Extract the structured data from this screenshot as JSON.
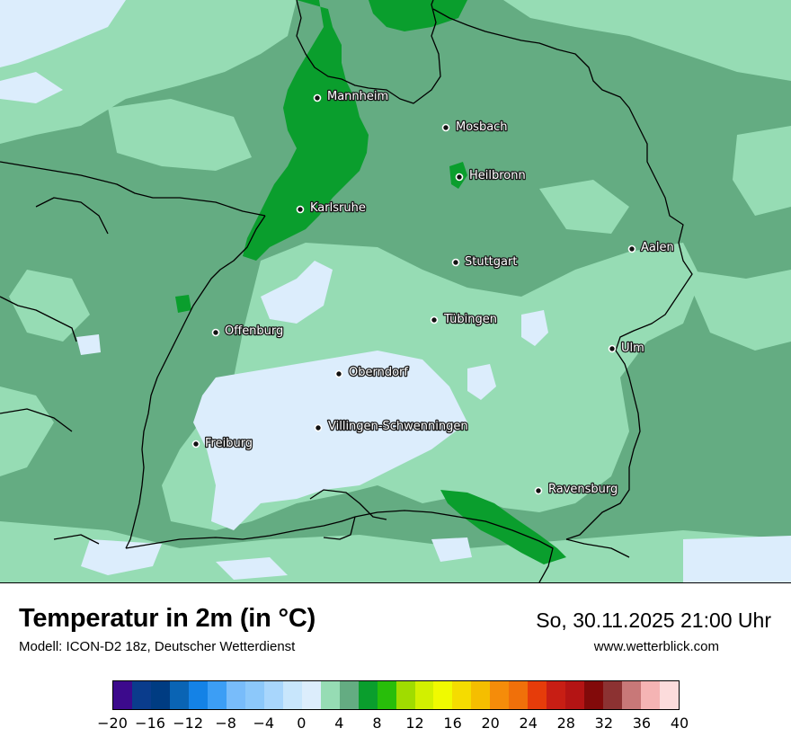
{
  "header": {
    "title": "Temperatur in 2m (in °C)",
    "subtitle": "Modell: ICON-D2 18z, Deutscher Wetterdienst",
    "datetime": "So, 30.11.2025 21:00 Uhr",
    "website": "www.wetterblick.com"
  },
  "cities": [
    {
      "name": "Mannheim"
    },
    {
      "name": "Mosbach"
    },
    {
      "name": "Heilbronn"
    },
    {
      "name": "Karlsruhe"
    },
    {
      "name": "Aalen"
    },
    {
      "name": "Stuttgart"
    },
    {
      "name": "Tübingen"
    },
    {
      "name": "Offenburg"
    },
    {
      "name": "Ulm"
    },
    {
      "name": "Oberndorf"
    },
    {
      "name": "Villingen-Schwenningen"
    },
    {
      "name": "Freiburg"
    },
    {
      "name": "Ravensburg"
    }
  ],
  "legend": {
    "ticks": [
      "−20",
      "−16",
      "−12",
      "−8",
      "−4",
      "0",
      "4",
      "8",
      "12",
      "16",
      "20",
      "24",
      "28",
      "32",
      "36",
      "40"
    ],
    "colors": [
      "#3c0a8c",
      "#0a3c8c",
      "#003c82",
      "#0a64b4",
      "#1482e6",
      "#3c9ef5",
      "#78bcfa",
      "#8cc8fa",
      "#a8d6fc",
      "#c8e6fc",
      "#dcedfc",
      "#96dcb4",
      "#64ac82",
      "#0a9e2d",
      "#28be0a",
      "#a0dc00",
      "#d2f000",
      "#f0fa00",
      "#f5dc00",
      "#f5be00",
      "#f58c0a",
      "#f0700a",
      "#e63c0a",
      "#c81e14",
      "#b41414",
      "#820a0a",
      "#8c3232",
      "#c87878",
      "#f5b4b4",
      "#fcdcdc"
    ]
  },
  "map_colors": {
    "cold_light": "#dcedfc",
    "band_2_4": "#96dcb4",
    "band_4_6": "#64ac82",
    "band_6_8": "#0a9e2d",
    "border": "#000000"
  }
}
